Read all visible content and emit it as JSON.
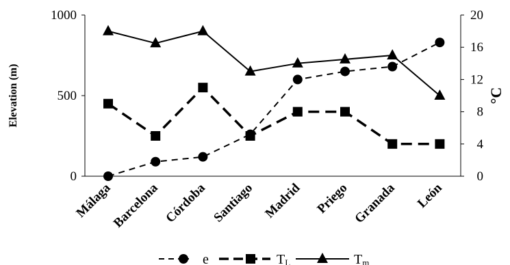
{
  "chart_data": {
    "type": "line",
    "categories": [
      "Málaga",
      "Barcelona",
      "Córdoba",
      "Santiago",
      "Madrid",
      "Priego",
      "Granada",
      "León"
    ],
    "y_left": {
      "label": "Elevation (m)",
      "ylim": [
        0,
        1000
      ],
      "ticks": [
        "0",
        "500",
        "1000"
      ]
    },
    "y_right": {
      "label": "°C",
      "ylim": [
        0,
        20
      ],
      "ticks": [
        "0",
        "4",
        "8",
        "12",
        "16",
        "20"
      ]
    },
    "series": [
      {
        "name": "e",
        "axis": "left",
        "marker": "circle",
        "line": "dashed",
        "values": [
          0,
          90,
          120,
          260,
          600,
          650,
          680,
          830
        ]
      },
      {
        "name": "T_L",
        "axis": "right",
        "marker": "square",
        "line": "dashed-bold",
        "values": [
          9,
          5,
          11,
          5,
          8,
          8,
          4,
          4
        ]
      },
      {
        "name": "T_m",
        "axis": "right",
        "marker": "triangle",
        "line": "solid",
        "values": [
          18,
          16.5,
          18,
          13,
          14,
          14.5,
          15,
          10
        ]
      }
    ],
    "legend": {
      "position": "bottom",
      "items": [
        {
          "text": "e",
          "sub": ""
        },
        {
          "text": "T",
          "sub": "L"
        },
        {
          "text": "T",
          "sub": "m"
        }
      ]
    },
    "grid": false
  }
}
